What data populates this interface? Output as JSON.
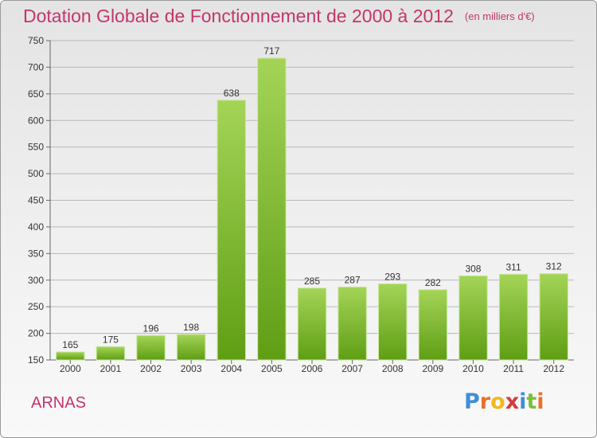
{
  "title": "Dotation Globale de Fonctionnement de 2000 à 2012",
  "unit": "(en milliers d'€)",
  "commune": "ARNAS",
  "logo": {
    "letters": [
      "P",
      "r",
      "o",
      "x",
      "i",
      "t",
      "i"
    ],
    "colors": [
      "#3d8fd6",
      "#e8712a",
      "#f0b91f",
      "#d63b3b",
      "#3d8fd6",
      "#7cbf3a",
      "#e8712a"
    ]
  },
  "colors": {
    "bar_top": "#a4d457",
    "bar_bottom": "#5f9e14",
    "title": "#c4356c"
  },
  "chart_data": {
    "type": "bar",
    "title": "Dotation Globale de Fonctionnement de 2000 à 2012",
    "subtitle": "(en milliers d'€)",
    "categories": [
      "2000",
      "2001",
      "2002",
      "2003",
      "2004",
      "2005",
      "2006",
      "2007",
      "2008",
      "2009",
      "2010",
      "2011",
      "2012"
    ],
    "values": [
      165,
      175,
      196,
      198,
      638,
      717,
      285,
      287,
      293,
      282,
      308,
      311,
      312
    ],
    "ylim": [
      150,
      750
    ],
    "yticks": [
      150,
      200,
      250,
      300,
      350,
      400,
      450,
      500,
      550,
      600,
      650,
      700,
      750
    ],
    "grid": true,
    "data_labels": true
  }
}
